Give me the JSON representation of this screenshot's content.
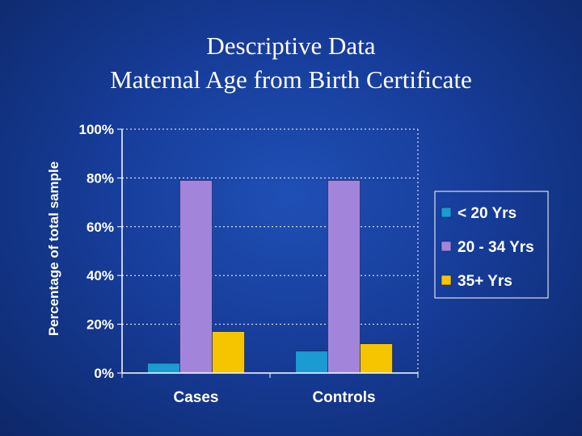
{
  "chart_data": {
    "type": "bar",
    "title": "Descriptive Data",
    "subtitle": "Maternal Age from Birth Certificate",
    "ylabel": "Percentage of total sample",
    "xlabel": "",
    "ylim": [
      0,
      100
    ],
    "yticks": [
      "0%",
      "20%",
      "40%",
      "60%",
      "80%",
      "100%"
    ],
    "categories": [
      "Cases",
      "Controls"
    ],
    "series": [
      {
        "name": "< 20 Yrs",
        "color": "#1a9bd1",
        "values": [
          4,
          9
        ]
      },
      {
        "name": "20 - 34 Yrs",
        "color": "#a285db",
        "values": [
          79,
          79
        ]
      },
      {
        "name": "35+ Yrs",
        "color": "#f7c400",
        "values": [
          17,
          12
        ]
      }
    ],
    "grid": true,
    "legend": "right"
  }
}
